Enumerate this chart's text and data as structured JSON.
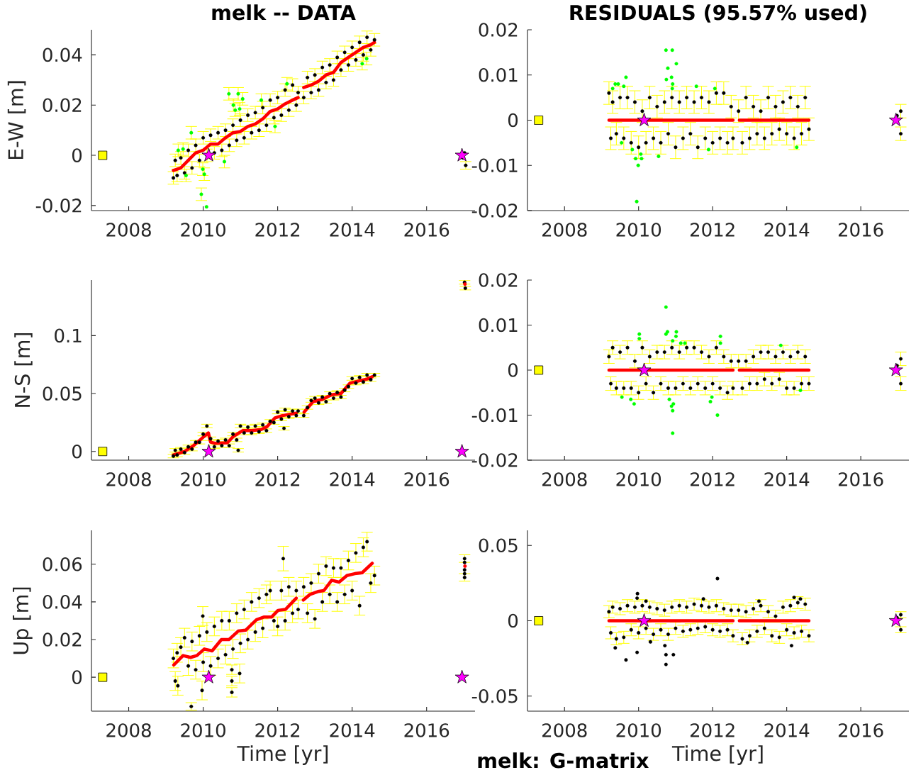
{
  "chart_data": [
    {
      "type": "scatter",
      "title": "melk -- DATA",
      "ylabel": "E-W [m]",
      "xlim": [
        2007,
        2017.3
      ],
      "xticks": [
        2008,
        2010,
        2012,
        2014,
        2016
      ],
      "ylim": [
        -0.022,
        0.05
      ],
      "yticks": [
        -0.02,
        0,
        0.02,
        0.04
      ],
      "series": [
        {
          "type": "scatter",
          "color": "#000000",
          "marker": "circle",
          "x": [
            2009.2,
            2009.25,
            2009.3,
            2009.4,
            2009.5,
            2009.6,
            2009.7,
            2009.8,
            2009.9,
            2010.0,
            2010.1,
            2010.2,
            2010.3,
            2010.4,
            2010.5,
            2010.6,
            2010.7,
            2010.8,
            2010.9,
            2011.0,
            2011.1,
            2011.2,
            2011.3,
            2011.4,
            2011.5,
            2011.6,
            2011.7,
            2011.8,
            2011.9,
            2012.0,
            2012.1,
            2012.2,
            2012.3,
            2012.4,
            2012.5,
            2012.55,
            2012.7,
            2012.8,
            2012.9,
            2013.0,
            2013.1,
            2013.2,
            2013.3,
            2013.4,
            2013.5,
            2013.6,
            2013.7,
            2013.8,
            2013.9,
            2014.0,
            2014.1,
            2014.2,
            2014.3,
            2014.4,
            2014.5,
            2014.6,
            2016.97,
            2017.05,
            2017.02
          ],
          "values": [
            -0.009,
            -0.002,
            -0.008,
            -0.001,
            -0.007,
            0.002,
            -0.005,
            0.004,
            -0.002,
            0.007,
            0,
            0.008,
            0.001,
            0.009,
            0.002,
            0.01,
            0.004,
            0.012,
            0.006,
            0.014,
            0.007,
            0.016,
            0.009,
            0.017,
            0.01,
            0.019,
            0.012,
            0.022,
            0.015,
            0.023,
            0.016,
            0.026,
            0.018,
            0.028,
            0.02,
            0.025,
            0.023,
            0.031,
            0.025,
            0.032,
            0.026,
            0.035,
            0.029,
            0.036,
            0.03,
            0.039,
            0.034,
            0.041,
            0.036,
            0.043,
            0.038,
            0.045,
            0.04,
            0.047,
            0.042,
            0.046,
            -0.001,
            -0.004,
            0.001
          ],
          "errors": [
            0.0025,
            0.0025,
            0.0025,
            0.0025,
            0.0025,
            0.0025,
            0.0025,
            0.0025,
            0.0025,
            0.0025,
            0.0025,
            0.0025,
            0.0025,
            0.0025,
            0.0025,
            0.0025,
            0.0025,
            0.0025,
            0.0025,
            0.0025,
            0.0025,
            0.0025,
            0.0025,
            0.0025,
            0.0025,
            0.0025,
            0.0025,
            0.0025,
            0.0025,
            0.0025,
            0.0025,
            0.0025,
            0.0025,
            0.0025,
            0.0025,
            0.0025,
            0.0025,
            0.0025,
            0.0025,
            0.0025,
            0.0025,
            0.0025,
            0.0025,
            0.0025,
            0.0025,
            0.0025,
            0.0025,
            0.0025,
            0.0025,
            0.0025,
            0.0025,
            0.0025,
            0.0025,
            0.0025,
            0.0025,
            0.0025,
            null,
            0.0015,
            null
          ]
        },
        {
          "type": "scatter",
          "color": "#00ff00",
          "marker": "circle",
          "x": [
            2009.33,
            2009.46,
            2009.54,
            2009.68,
            2009.95,
            2009.99,
            2010.03,
            2010.09,
            2010.57,
            2010.69,
            2010.81,
            2010.86,
            2010.94,
            2010.98,
            2011.06,
            2011.56,
            2011.93,
            2012.25,
            2014.27,
            2014.39
          ],
          "values": [
            0.002,
            0.0025,
            -0.008,
            0.009,
            -0.0155,
            -0.0055,
            -0.0075,
            -0.0205,
            -0.0025,
            0.0245,
            0.02,
            0.018,
            0.0245,
            0.0185,
            0.0225,
            0.022,
            0.0115,
            0.0285,
            0.0365,
            0.0385
          ],
          "errors": [
            0.0025,
            0.0025,
            0.0025,
            0.0025,
            0.0025,
            0.0025,
            0.0025,
            null,
            0.0025,
            0.0025,
            0.0025,
            0.0025,
            0.0025,
            0.0025,
            0.0025,
            0.0025,
            0.0025,
            0.0025,
            0.0025,
            0.0025
          ]
        },
        {
          "type": "line",
          "color": "#ff0000",
          "x": [
            2009.2,
            2009.4,
            2009.6,
            2009.8,
            2010.0,
            2010.2,
            2010.4,
            2010.6,
            2010.8,
            2011.0,
            2011.2,
            2011.4,
            2011.6,
            2011.8,
            2012.0,
            2012.2,
            2012.4,
            2012.55,
            2012.62,
            2012.7,
            2012.9,
            2013.1,
            2013.3,
            2013.5,
            2013.7,
            2013.9,
            2014.1,
            2014.3,
            2014.5,
            2014.6
          ],
          "values": [
            -0.006,
            -0.005,
            -0.002,
            0.001,
            0.002,
            0.0045,
            0.0045,
            0.007,
            0.009,
            0.0095,
            0.0115,
            0.0125,
            0.0145,
            0.0175,
            0.0185,
            0.0205,
            0.022,
            0.023,
            null,
            0.027,
            0.028,
            0.0295,
            0.032,
            0.033,
            0.037,
            0.039,
            0.041,
            0.043,
            0.044,
            0.045
          ]
        },
        {
          "type": "scatter",
          "color": "#ffff00",
          "marker": "square",
          "x": [
            2007.3
          ],
          "values": [
            0
          ]
        },
        {
          "type": "scatter",
          "color": "#ff00ff",
          "marker": "star",
          "x": [
            2010.15,
            2016.95
          ],
          "values": [
            0,
            0
          ]
        }
      ]
    },
    {
      "type": "scatter",
      "title": "RESIDUALS (95.57% used)",
      "xlim": [
        2007,
        2017.3
      ],
      "xticks": [
        2008,
        2010,
        2012,
        2014,
        2016
      ],
      "ylim": [
        -0.02,
        0.02
      ],
      "yticks": [
        -0.02,
        -0.01,
        0,
        0.01,
        0.02
      ],
      "series": [
        {
          "type": "scatter",
          "color": "#000000",
          "marker": "circle",
          "x": [
            2009.2,
            2009.25,
            2009.3,
            2009.4,
            2009.5,
            2009.6,
            2009.7,
            2009.8,
            2009.9,
            2010.0,
            2010.1,
            2010.2,
            2010.3,
            2010.4,
            2010.5,
            2010.6,
            2010.7,
            2010.8,
            2010.9,
            2011.0,
            2011.1,
            2011.2,
            2011.3,
            2011.4,
            2011.5,
            2011.6,
            2011.7,
            2011.8,
            2011.9,
            2012.0,
            2012.1,
            2012.2,
            2012.3,
            2012.4,
            2012.5,
            2012.55,
            2012.7,
            2012.8,
            2012.9,
            2013.0,
            2013.1,
            2013.2,
            2013.3,
            2013.4,
            2013.5,
            2013.6,
            2013.7,
            2013.8,
            2013.9,
            2014.0,
            2014.1,
            2014.2,
            2014.3,
            2014.4,
            2014.5,
            2014.6,
            2016.98,
            2017.08,
            2017.08
          ],
          "values": [
            0.006,
            -0.004,
            0.004,
            -0.003,
            0.005,
            -0.004,
            0.005,
            -0.005,
            0.004,
            -0.006,
            0.002,
            -0.005,
            0.005,
            -0.004,
            0.003,
            -0.005,
            0.004,
            -0.003,
            0.005,
            -0.006,
            0.004,
            -0.004,
            0.005,
            -0.003,
            0.004,
            -0.006,
            0.005,
            -0.004,
            0.004,
            -0.005,
            0.006,
            -0.004,
            0.006,
            -0.005,
            0.003,
            -0.004,
            0.002,
            -0.005,
            0.005,
            -0.004,
            0.003,
            -0.003,
            0.002,
            -0.004,
            0.005,
            -0.003,
            0.003,
            -0.002,
            0.004,
            -0.003,
            0.005,
            -0.004,
            0.003,
            -0.003,
            0.005,
            -0.002,
            0.001,
            0.002,
            -0.003
          ],
          "errors": [
            0.0025,
            0.0025,
            0.0025,
            0.0025,
            0.0025,
            0.0025,
            0.0025,
            0.0025,
            0.0025,
            0.0025,
            0.0025,
            0.0025,
            0.0025,
            0.0025,
            0.0025,
            0.0025,
            0.0025,
            0.0025,
            0.0025,
            0.0025,
            0.0025,
            0.0025,
            0.0025,
            0.0025,
            0.0025,
            0.0025,
            0.0025,
            0.0025,
            0.0025,
            0.0025,
            0.0025,
            0.0025,
            0.0025,
            0.0025,
            0.0025,
            0.0025,
            0.0025,
            0.0025,
            0.0025,
            0.0025,
            0.0025,
            0.0025,
            0.0025,
            0.0025,
            0.0025,
            0.0025,
            0.0025,
            0.0025,
            0.0025,
            0.0025,
            0.0025,
            0.0025,
            0.0025,
            0.0025,
            0.0025,
            0.0025,
            null,
            0.0015,
            0.0015
          ]
        },
        {
          "type": "scatter",
          "color": "#00ff00",
          "marker": "circle",
          "x": [
            2010.74,
            2010.91,
            2011.02,
            2010.79,
            2010.89,
            2010.75,
            2010.92,
            2010.91,
            2009.66,
            2009.37,
            2009.45,
            2009.6,
            2009.3,
            2011.56,
            2012.06,
            2009.95,
            2009.99,
            2009.92,
            2010.08,
            2010.06,
            2009.83,
            2010.54,
            2011.89,
            2014.27,
            2009.54
          ],
          "values": [
            0.0155,
            0.0155,
            0.0125,
            0.0115,
            0.0095,
            0.009,
            0.008,
            0.007,
            0.0095,
            0.008,
            0.008,
            0.0075,
            0.007,
            0.0075,
            0.007,
            -0.018,
            -0.01,
            -0.0085,
            -0.0085,
            -0.0075,
            -0.0065,
            -0.008,
            -0.0065,
            -0.006,
            -0.005
          ]
        },
        {
          "type": "line",
          "color": "#ff0000",
          "x": [
            2009.2,
            2010.9,
            2012.55,
            2012.62,
            2012.72,
            2013.7,
            2014.6
          ],
          "values": [
            0,
            0,
            0,
            null,
            0,
            0,
            0
          ]
        },
        {
          "type": "scatter",
          "color": "#ffff00",
          "marker": "square",
          "x": [
            2007.3
          ],
          "values": [
            0
          ]
        },
        {
          "type": "scatter",
          "color": "#ff00ff",
          "marker": "star",
          "x": [
            2010.15,
            2016.95
          ],
          "values": [
            0,
            0
          ]
        }
      ]
    },
    {
      "type": "scatter",
      "ylabel": "N-S [m]",
      "xlim": [
        2007,
        2017.3
      ],
      "xticks": [
        2008,
        2010,
        2012,
        2014,
        2016
      ],
      "ylim": [
        -0.0075,
        0.148
      ],
      "yticks": [
        0,
        0.05,
        0.1
      ],
      "series": [
        {
          "type": "scatter",
          "color": "#000000",
          "marker": "circle",
          "x": [
            2009.2,
            2009.25,
            2009.3,
            2009.4,
            2009.5,
            2009.6,
            2009.7,
            2009.8,
            2009.9,
            2010.0,
            2010.1,
            2010.2,
            2010.3,
            2010.4,
            2010.5,
            2010.6,
            2010.7,
            2010.8,
            2010.9,
            2011.0,
            2011.1,
            2011.2,
            2011.3,
            2011.4,
            2011.5,
            2011.6,
            2011.7,
            2011.8,
            2011.9,
            2012.0,
            2012.1,
            2012.2,
            2012.3,
            2012.4,
            2012.5,
            2012.55,
            2012.7,
            2012.8,
            2012.9,
            2013.0,
            2013.1,
            2013.2,
            2013.3,
            2013.4,
            2013.5,
            2013.6,
            2013.7,
            2013.8,
            2013.9,
            2014.0,
            2014.1,
            2014.2,
            2014.3,
            2014.4,
            2014.5,
            2014.6,
            2010.94,
            2012.17,
            2017.02,
            2017.04
          ],
          "values": [
            -0.004,
            0.001,
            -0.003,
            0.002,
            -0.001,
            0.004,
            0.002,
            0.008,
            0.008,
            0.015,
            0.022,
            0.011,
            0.004,
            0.009,
            0.005,
            0.01,
            0.005,
            0.015,
            0.01,
            0.022,
            0.016,
            0.021,
            0.016,
            0.022,
            0.017,
            0.023,
            0.018,
            0.026,
            0.025,
            0.034,
            0.028,
            0.036,
            0.03,
            0.035,
            0.031,
            0.035,
            0.031,
            0.038,
            0.044,
            0.046,
            0.042,
            0.047,
            0.043,
            0.05,
            0.046,
            0.051,
            0.047,
            0.053,
            0.056,
            0.063,
            0.059,
            0.064,
            0.06,
            0.066,
            0.062,
            0.066,
            0.001,
            0.02,
            0.146,
            0.141
          ],
          "errors": [
            0.0015,
            0.0015,
            0.0015,
            0.0015,
            0.0015,
            0.0015,
            0.0015,
            0.0015,
            0.0015,
            0.0015,
            0.0015,
            0.0015,
            0.0015,
            0.0015,
            0.0015,
            0.0015,
            0.0015,
            0.0015,
            0.0015,
            0.0015,
            0.0015,
            0.0015,
            0.0015,
            0.0015,
            0.0015,
            0.0015,
            0.0015,
            0.0015,
            0.0015,
            0.0015,
            0.0015,
            0.0015,
            0.0015,
            0.0015,
            0.0015,
            0.0015,
            0.0015,
            0.0015,
            0.0015,
            0.0015,
            0.0015,
            0.0015,
            0.0015,
            0.0015,
            0.0015,
            0.0015,
            0.0015,
            0.0015,
            0.0015,
            0.0015,
            0.0015,
            0.0015,
            0.0015,
            0.0015,
            0.0015,
            0.0015,
            0.0015,
            0.0015,
            0.0015,
            0.0015
          ]
        },
        {
          "type": "line",
          "color": "#ff0000",
          "x": [
            2009.2,
            2009.5,
            2009.74,
            2009.99,
            2010.14,
            2010.2,
            2010.32,
            2010.65,
            2010.81,
            2011.06,
            2011.31,
            2011.56,
            2011.72,
            2011.93,
            2012.13,
            2012.5,
            2012.6,
            2012.71,
            2012.95,
            2013.2,
            2013.45,
            2013.7,
            2013.94,
            2014.19,
            2014.4,
            2014.54
          ],
          "values": [
            -0.003,
            0,
            0.005,
            0.012,
            0.016,
            0.008,
            0.007,
            0.0075,
            0.013,
            0.018,
            0.018,
            0.019,
            0.0215,
            0.029,
            0.031,
            0.033,
            null,
            0.034,
            0.043,
            0.045,
            0.049,
            0.05,
            0.059,
            0.061,
            0.0625,
            0.0645
          ]
        },
        {
          "type": "scatter",
          "color": "#ff0000",
          "marker": "circle",
          "x": [
            2017.03
          ],
          "values": [
            0.1445
          ]
        },
        {
          "type": "scatter",
          "color": "#ffff00",
          "marker": "square",
          "x": [
            2007.3
          ],
          "values": [
            0
          ]
        },
        {
          "type": "scatter",
          "color": "#ff00ff",
          "marker": "star",
          "x": [
            2010.15,
            2016.95
          ],
          "values": [
            0,
            0
          ]
        }
      ]
    },
    {
      "type": "scatter",
      "xlim": [
        2007,
        2017.3
      ],
      "xticks": [
        2008,
        2010,
        2012,
        2014,
        2016
      ],
      "ylim": [
        -0.02,
        0.02
      ],
      "yticks": [
        -0.02,
        -0.01,
        0,
        0.01,
        0.02
      ],
      "series": [
        {
          "type": "scatter",
          "color": "#000000",
          "marker": "circle",
          "x": [
            2009.2,
            2009.25,
            2009.3,
            2009.4,
            2009.5,
            2009.6,
            2009.7,
            2009.8,
            2009.9,
            2010.0,
            2010.1,
            2010.2,
            2010.3,
            2010.4,
            2010.5,
            2010.6,
            2010.7,
            2010.8,
            2010.9,
            2011.0,
            2011.1,
            2011.2,
            2011.3,
            2011.4,
            2011.5,
            2011.6,
            2011.7,
            2011.8,
            2011.9,
            2012.0,
            2012.1,
            2012.2,
            2012.3,
            2012.4,
            2012.5,
            2012.55,
            2012.7,
            2012.8,
            2012.9,
            2013.0,
            2013.1,
            2013.2,
            2013.3,
            2013.4,
            2013.5,
            2013.6,
            2013.7,
            2013.8,
            2013.9,
            2014.0,
            2014.1,
            2014.2,
            2014.3,
            2014.4,
            2014.5,
            2014.6,
            2016.98,
            2017.08,
            2017.08
          ],
          "values": [
            0.003,
            -0.003,
            0.005,
            -0.004,
            0.004,
            -0.004,
            0.005,
            -0.004,
            0.002,
            -0.005,
            0.005,
            -0.003,
            0.003,
            -0.005,
            0.004,
            -0.003,
            0.004,
            -0.004,
            0.005,
            -0.004,
            0.004,
            -0.003,
            0.005,
            -0.004,
            0.005,
            -0.003,
            0.004,
            -0.004,
            0.003,
            -0.003,
            0.005,
            -0.004,
            0.003,
            -0.005,
            0.002,
            -0.004,
            0.002,
            -0.004,
            0.002,
            -0.003,
            0.003,
            -0.003,
            0.004,
            -0.002,
            0.004,
            -0.003,
            0.003,
            -0.002,
            0.004,
            -0.004,
            0.003,
            -0.004,
            0.004,
            -0.003,
            0.003,
            -0.003,
            0.001,
            0.0025,
            -0.003
          ],
          "errors": [
            0.0015,
            0.0015,
            0.0015,
            0.0015,
            0.0015,
            0.0015,
            0.0015,
            0.0015,
            0.0015,
            0.0015,
            0.0015,
            0.0015,
            0.0015,
            0.0015,
            0.0015,
            0.0015,
            0.0015,
            0.0015,
            0.0015,
            0.0015,
            0.0015,
            0.0015,
            0.0015,
            0.0015,
            0.0015,
            0.0015,
            0.0015,
            0.0015,
            0.0015,
            0.0015,
            0.0015,
            0.0015,
            0.0015,
            0.0015,
            0.0015,
            0.0015,
            0.0015,
            0.0015,
            0.0015,
            0.0015,
            0.0015,
            0.0015,
            0.0015,
            0.0015,
            0.0015,
            0.0015,
            0.0015,
            0.0015,
            0.0015,
            0.0015,
            0.0015,
            0.0015,
            0.0015,
            0.0015,
            0.0015,
            0.0015,
            null,
            0.0015,
            0.0015
          ]
        },
        {
          "type": "scatter",
          "color": "#00ff00",
          "marker": "circle",
          "x": [
            2010.74,
            2010.78,
            2010.74,
            2011.02,
            2011.01,
            2010.92,
            2010.02,
            2010.02,
            2011.14,
            2011.25,
            2012.21,
            2012.21,
            2013.84,
            2010.92,
            2012.13,
            2010.92,
            2010.89,
            2010.83,
            2010.94,
            2009.88,
            2009.79,
            2011.94,
            2011.98,
            2009.55,
            2014.37
          ],
          "values": [
            0.014,
            0.0085,
            0.008,
            0.0085,
            0.0075,
            0.0065,
            0.008,
            0.007,
            0.006,
            0.006,
            0.0075,
            0.006,
            0.0055,
            -0.014,
            -0.01,
            -0.009,
            -0.008,
            -0.0065,
            -0.0075,
            -0.0075,
            -0.0065,
            -0.007,
            -0.006,
            -0.006,
            -0.0045
          ]
        },
        {
          "type": "line",
          "color": "#ff0000",
          "x": [
            2009.2,
            2010.9,
            2012.55,
            2012.62,
            2012.72,
            2013.7,
            2014.6
          ],
          "values": [
            0,
            0,
            0,
            null,
            0,
            0,
            0
          ]
        },
        {
          "type": "scatter",
          "color": "#ffff00",
          "marker": "square",
          "x": [
            2007.3
          ],
          "values": [
            0
          ]
        },
        {
          "type": "scatter",
          "color": "#ff00ff",
          "marker": "star",
          "x": [
            2010.15,
            2016.95
          ],
          "values": [
            0,
            0
          ]
        }
      ]
    },
    {
      "type": "scatter",
      "ylabel": "Up [m]",
      "xlabel": "Time [yr]",
      "xlim": [
        2007,
        2017.3
      ],
      "xticks": [
        2008,
        2010,
        2012,
        2014,
        2016
      ],
      "ylim": [
        -0.018,
        0.078
      ],
      "yticks": [
        0,
        0.02,
        0.04,
        0.06
      ],
      "series": [
        {
          "type": "scatter",
          "color": "#000000",
          "marker": "circle",
          "x": [
            2009.2,
            2009.25,
            2009.3,
            2009.4,
            2009.5,
            2009.6,
            2009.7,
            2009.8,
            2009.9,
            2010.0,
            2010.1,
            2010.2,
            2010.3,
            2010.4,
            2010.5,
            2010.6,
            2010.7,
            2010.8,
            2010.9,
            2011.0,
            2011.1,
            2011.2,
            2011.3,
            2011.4,
            2011.5,
            2011.6,
            2011.7,
            2011.8,
            2011.9,
            2012.0,
            2012.1,
            2012.2,
            2012.3,
            2012.4,
            2012.5,
            2012.55,
            2012.7,
            2012.8,
            2012.9,
            2013.0,
            2013.1,
            2013.2,
            2013.3,
            2013.4,
            2013.5,
            2013.6,
            2013.7,
            2013.8,
            2013.9,
            2014.0,
            2014.1,
            2014.2,
            2014.3,
            2014.4,
            2014.5,
            2014.6,
            2009.32,
            2009.68,
            2009.99,
            2009.97,
            2010.77,
            2010.77,
            2010.77,
            2010.98,
            2012.15,
            2017.02,
            2017.02,
            2017.02,
            2017.02,
            2017.02
          ],
          "values": [
            0.01,
            -0.002,
            0.013,
            0.016,
            0.021,
            0.006,
            0.019,
            0.004,
            0.022,
            0.008,
            0.024,
            0.006,
            0.027,
            0.01,
            0.03,
            0.012,
            0.03,
            0.015,
            0.034,
            0.018,
            0.036,
            0.02,
            0.04,
            0.024,
            0.042,
            0.026,
            0.044,
            0.046,
            0.03,
            0.027,
            0.046,
            0.03,
            0.048,
            0.034,
            0.046,
            0.036,
            0.048,
            0.034,
            0.05,
            0.031,
            0.055,
            0.04,
            0.059,
            0.044,
            0.058,
            0.04,
            0.058,
            0.044,
            0.062,
            0.046,
            0.066,
            0.038,
            0.069,
            0.072,
            0.05,
            0.054,
            -0.0045,
            -0.0155,
            0.0325,
            -0.007,
            0.004,
            -0.002,
            -0.008,
            0.002,
            0.063,
            0.063,
            0.061,
            0.057,
            0.055,
            0.053
          ],
          "errors": [
            0.005,
            0.005,
            0.005,
            0.005,
            0.005,
            0.005,
            0.005,
            0.005,
            0.005,
            0.005,
            0.005,
            0.005,
            0.005,
            0.005,
            0.005,
            0.005,
            0.005,
            0.005,
            0.005,
            0.005,
            0.005,
            0.005,
            0.005,
            0.005,
            0.005,
            0.005,
            0.005,
            0.005,
            0.005,
            0.005,
            0.005,
            0.005,
            0.005,
            0.005,
            0.005,
            0.005,
            0.005,
            0.005,
            0.005,
            0.005,
            0.005,
            0.005,
            0.005,
            0.005,
            0.005,
            0.005,
            0.005,
            0.005,
            0.005,
            0.005,
            0.005,
            0.005,
            0.005,
            0.005,
            0.005,
            0.005,
            0.005,
            0.002,
            0.005,
            0.005,
            0.0025,
            0.0025,
            0.0025,
            0.005,
            0.0065,
            0.002,
            null,
            null,
            null,
            0.002
          ]
        },
        {
          "type": "line",
          "color": "#ff0000",
          "x": [
            2009.21,
            2009.46,
            2009.66,
            2009.83,
            2010.03,
            2010.24,
            2010.49,
            2010.69,
            2010.94,
            2011.14,
            2011.43,
            2011.64,
            2011.84,
            2012.01,
            2012.21,
            2012.5,
            2012.6,
            2012.69,
            2012.87,
            2013.08,
            2013.24,
            2013.45,
            2013.65,
            2013.86,
            2014.07,
            2014.27,
            2014.54
          ],
          "values": [
            0.0065,
            0.0115,
            0.0105,
            0.0115,
            0.015,
            0.014,
            0.02,
            0.02,
            0.0245,
            0.025,
            0.0305,
            0.032,
            0.032,
            0.0355,
            0.036,
            0.042,
            null,
            0.041,
            0.044,
            0.0455,
            0.046,
            0.0515,
            0.0505,
            0.054,
            0.055,
            0.0555,
            0.0605
          ]
        },
        {
          "type": "scatter",
          "color": "#ff0000",
          "marker": "circle",
          "x": [
            2017.03
          ],
          "values": [
            0.059
          ]
        },
        {
          "type": "scatter",
          "color": "#ffff00",
          "marker": "square",
          "x": [
            2007.3
          ],
          "values": [
            0
          ]
        },
        {
          "type": "scatter",
          "color": "#ff00ff",
          "marker": "star",
          "x": [
            2010.15,
            2016.95
          ],
          "values": [
            0,
            0
          ]
        }
      ]
    },
    {
      "type": "scatter",
      "xlabel": "Time [yr]",
      "xlim": [
        2007,
        2017.3
      ],
      "xticks": [
        2008,
        2010,
        2012,
        2014,
        2016
      ],
      "ylim": [
        -0.06,
        0.06
      ],
      "yticks": [
        -0.05,
        0,
        0.05
      ],
      "annotations": [
        "melk: G-matrix"
      ],
      "series": [
        {
          "type": "scatter",
          "color": "#000000",
          "marker": "circle",
          "x": [
            2009.2,
            2009.25,
            2009.3,
            2009.4,
            2009.5,
            2009.6,
            2009.7,
            2009.8,
            2009.9,
            2010.0,
            2010.1,
            2010.2,
            2010.3,
            2010.4,
            2010.5,
            2010.6,
            2010.7,
            2010.8,
            2010.9,
            2011.0,
            2011.1,
            2011.2,
            2011.3,
            2011.4,
            2011.5,
            2011.6,
            2011.7,
            2011.8,
            2011.9,
            2012.0,
            2012.1,
            2012.2,
            2012.3,
            2012.4,
            2012.5,
            2012.55,
            2012.7,
            2012.8,
            2012.9,
            2013.0,
            2013.1,
            2013.2,
            2013.3,
            2013.4,
            2013.5,
            2013.6,
            2013.7,
            2013.8,
            2013.9,
            2014.0,
            2014.1,
            2014.2,
            2014.3,
            2014.4,
            2014.5,
            2014.6,
            2016.98,
            2017.08,
            2017.08,
            2009.97,
            2009.96,
            2010.2,
            2012.13,
            2011.75,
            2013.25,
            2014.2,
            2014.37,
            2009.37,
            2009.66,
            2009.96,
            2010.71,
            2010.74,
            2010.74,
            2010.94,
            2014.13,
            2012.94,
            2010.32
          ],
          "values": [
            0.006,
            -0.008,
            0.009,
            -0.012,
            0.008,
            -0.011,
            0.01,
            -0.006,
            0.009,
            -0.008,
            0.01,
            -0.005,
            0.009,
            -0.009,
            0.008,
            -0.006,
            0.007,
            -0.009,
            0.009,
            -0.005,
            0.01,
            -0.007,
            0.009,
            -0.006,
            0.011,
            -0.005,
            0.01,
            -0.004,
            0.009,
            -0.006,
            0.01,
            -0.007,
            0.008,
            -0.006,
            0.007,
            -0.01,
            0.007,
            -0.012,
            0.006,
            -0.01,
            0.008,
            -0.007,
            0.01,
            -0.005,
            0.006,
            -0.01,
            0.003,
            -0.011,
            0.009,
            -0.006,
            0.01,
            -0.008,
            0.012,
            -0.007,
            0.011,
            -0.01,
            0.002,
            0.004,
            -0.006,
            0.018,
            0.015,
            0.013,
            0.028,
            0.0145,
            0.013,
            0.0155,
            0.0145,
            -0.018,
            -0.026,
            -0.021,
            -0.0165,
            -0.0225,
            -0.029,
            -0.0225,
            -0.0165,
            -0.0145,
            -0.014
          ],
          "errors": [
            0.004,
            0.004,
            0.004,
            0.004,
            0.004,
            0.004,
            0.004,
            0.004,
            0.004,
            0.004,
            0.004,
            0.004,
            0.004,
            0.004,
            0.004,
            0.004,
            0.004,
            0.004,
            0.004,
            0.004,
            0.004,
            0.004,
            0.004,
            0.004,
            0.004,
            0.004,
            0.004,
            0.004,
            0.004,
            0.004,
            0.004,
            0.004,
            0.004,
            0.004,
            0.004,
            0.004,
            0.004,
            0.004,
            0.004,
            0.004,
            0.004,
            0.004,
            0.004,
            0.004,
            0.004,
            0.004,
            0.004,
            0.004,
            0.004,
            0.004,
            0.004,
            0.004,
            0.004,
            0.004,
            0.004,
            0.004,
            null,
            0.002,
            0.002,
            null,
            null,
            null,
            null,
            null,
            null,
            null,
            null,
            null,
            null,
            null,
            null,
            null,
            null,
            null,
            null,
            null,
            null
          ]
        },
        {
          "type": "line",
          "color": "#ff0000",
          "x": [
            2009.2,
            2010.9,
            2012.55,
            2012.62,
            2012.72,
            2013.7,
            2014.6
          ],
          "values": [
            0,
            0,
            0,
            null,
            0,
            0,
            0
          ]
        },
        {
          "type": "scatter",
          "color": "#ffff00",
          "marker": "square",
          "x": [
            2007.3
          ],
          "values": [
            0
          ]
        },
        {
          "type": "scatter",
          "color": "#ff00ff",
          "marker": "star",
          "x": [
            2010.15,
            2016.95
          ],
          "values": [
            0,
            0
          ]
        }
      ]
    }
  ]
}
